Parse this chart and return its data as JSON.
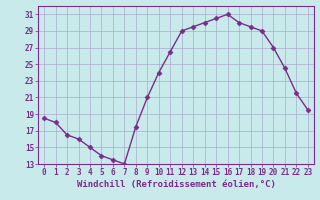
{
  "x": [
    0,
    1,
    2,
    3,
    4,
    5,
    6,
    7,
    8,
    9,
    10,
    11,
    12,
    13,
    14,
    15,
    16,
    17,
    18,
    19,
    20,
    21,
    22,
    23
  ],
  "y": [
    18.5,
    18.0,
    16.5,
    16.0,
    15.0,
    14.0,
    13.5,
    13.0,
    17.5,
    21.0,
    24.0,
    26.5,
    29.0,
    29.5,
    30.0,
    30.5,
    31.0,
    30.0,
    29.5,
    29.0,
    27.0,
    24.5,
    21.5,
    19.5
  ],
  "line_color": "#7b2d8b",
  "marker": "D",
  "marker_size": 2.5,
  "bg_color": "#c8eaea",
  "grid_color": "#aaaacc",
  "xlabel": "Windchill (Refroidissement éolien,°C)",
  "ylabel": "",
  "xlim": [
    -0.5,
    23.5
  ],
  "ylim": [
    13,
    32
  ],
  "yticks": [
    13,
    15,
    17,
    19,
    21,
    23,
    25,
    27,
    29,
    31
  ],
  "xticks": [
    0,
    1,
    2,
    3,
    4,
    5,
    6,
    7,
    8,
    9,
    10,
    11,
    12,
    13,
    14,
    15,
    16,
    17,
    18,
    19,
    20,
    21,
    22,
    23
  ],
  "tick_label_color": "#7b2d8b",
  "tick_label_size": 5.5,
  "xlabel_size": 6.5,
  "xlabel_color": "#7b2d8b",
  "spine_color": "#7b2d8b",
  "line_width": 1.0
}
